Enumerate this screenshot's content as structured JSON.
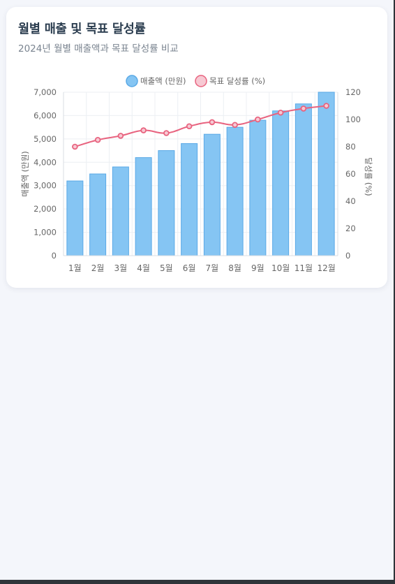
{
  "card": {
    "title": "월별 매출 및 목표 달성률",
    "subtitle": "2024년 월별 매출액과 목표 달성률 비교"
  },
  "colors": {
    "bar_fill": "#85c5f3",
    "bar_stroke": "#5aa9e6",
    "line": "#e8637f",
    "point_fill": "#f7c9d3",
    "grid": "#eceff3",
    "tick_text": "#666666"
  },
  "chart_data": {
    "type": "bar",
    "categories": [
      "1월",
      "2월",
      "3월",
      "4월",
      "5월",
      "6월",
      "7월",
      "8월",
      "9월",
      "10월",
      "11월",
      "12월"
    ],
    "series": [
      {
        "name": "매출액 (만원)",
        "type": "bar",
        "axis": "left",
        "values": [
          3200,
          3500,
          3800,
          4200,
          4500,
          4800,
          5200,
          5500,
          5800,
          6200,
          6500,
          7000
        ]
      },
      {
        "name": "목표 달성률 (%)",
        "type": "line",
        "axis": "right",
        "values": [
          80,
          85,
          88,
          92,
          90,
          95,
          98,
          96,
          100,
          105,
          108,
          110
        ]
      }
    ],
    "ylabel": "매출액 (만원)",
    "y2label": "달성률 (%)",
    "ylim": [
      0,
      7000
    ],
    "y2lim": [
      0,
      120
    ],
    "yticks": [
      "0",
      "1,000",
      "2,000",
      "3,000",
      "4,000",
      "5,000",
      "6,000",
      "7,000"
    ],
    "y2ticks": [
      "0",
      "20",
      "40",
      "60",
      "80",
      "100",
      "120"
    ],
    "legend_position": "top-center",
    "grid": true
  }
}
